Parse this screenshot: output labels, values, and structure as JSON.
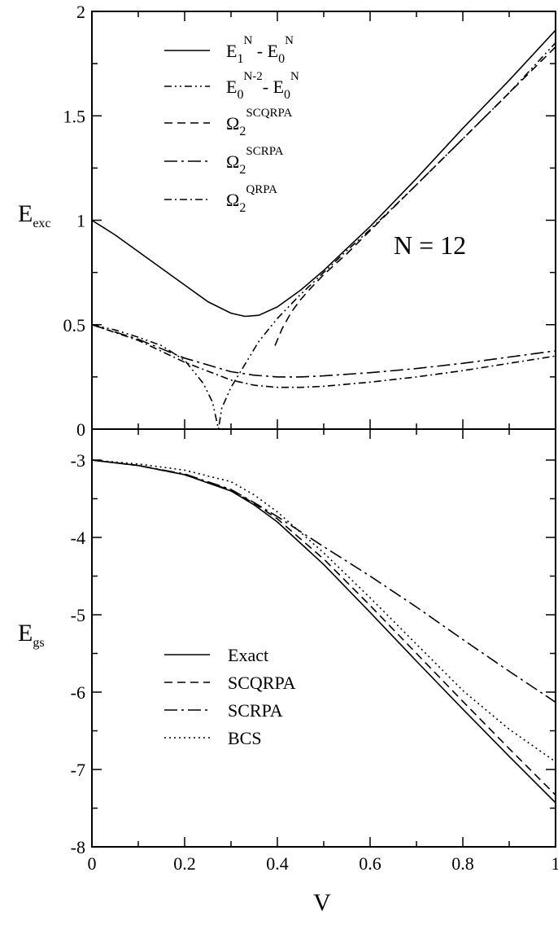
{
  "chart_data": [
    {
      "type": "line",
      "panel": "top",
      "ylabel": {
        "main": "E",
        "sub": "exc"
      },
      "xlim": [
        0,
        1
      ],
      "ylim": [
        0,
        2
      ],
      "yticks": [
        0,
        0.5,
        1,
        1.5,
        2
      ],
      "ytick_labels": [
        "0",
        "0.5",
        "1",
        "1.5",
        "2"
      ],
      "annotation": "N = 12",
      "legend_position": "top-left",
      "series": [
        {
          "key": "exact_excitation",
          "label": {
            "parts": [
              {
                "t": "E"
              },
              {
                "t": "1",
                "s": "sub"
              },
              {
                "t": "N",
                "s": "sup"
              },
              {
                "t": " - E"
              },
              {
                "t": "0",
                "s": "sub"
              },
              {
                "t": "N",
                "s": "sup"
              }
            ]
          },
          "dash": "solid",
          "x": [
            0,
            0.05,
            0.1,
            0.15,
            0.2,
            0.25,
            0.3,
            0.33,
            0.36,
            0.4,
            0.45,
            0.5,
            0.55,
            0.6,
            0.7,
            0.8,
            0.9,
            1.0
          ],
          "y": [
            1.0,
            0.93,
            0.85,
            0.77,
            0.69,
            0.61,
            0.555,
            0.54,
            0.545,
            0.585,
            0.665,
            0.76,
            0.865,
            0.97,
            1.2,
            1.44,
            1.67,
            1.91
          ]
        },
        {
          "key": "removal_energy",
          "label": {
            "parts": [
              {
                "t": "E"
              },
              {
                "t": "0",
                "s": "sub"
              },
              {
                "t": "N-2",
                "s": "sup"
              },
              {
                "t": "- E"
              },
              {
                "t": "0",
                "s": "sub"
              },
              {
                "t": "N",
                "s": "sup"
              }
            ]
          },
          "dash": "dash-dot-dot",
          "x": [
            0,
            0.05,
            0.1,
            0.15,
            0.2,
            0.24,
            0.26,
            0.273,
            0.28,
            0.3,
            0.33,
            0.36,
            0.4,
            0.45,
            0.5,
            0.55,
            0.6,
            0.7,
            0.8,
            0.9,
            1.0
          ],
          "y": [
            0.5,
            0.475,
            0.44,
            0.4,
            0.33,
            0.22,
            0.13,
            0.0,
            0.1,
            0.2,
            0.31,
            0.42,
            0.53,
            0.645,
            0.75,
            0.855,
            0.955,
            1.17,
            1.39,
            1.61,
            1.85
          ]
        },
        {
          "key": "omega2_scqrpa",
          "label": {
            "parts": [
              {
                "t": "Ω"
              },
              {
                "t": "2",
                "s": "sub"
              },
              {
                "t": "SCQRPA",
                "s": "sup"
              }
            ]
          },
          "dash": "dashed",
          "x": [
            0.395,
            0.41,
            0.43,
            0.45,
            0.47,
            0.5,
            0.55,
            0.6,
            0.65,
            0.7,
            0.8,
            0.9,
            1.0
          ],
          "y": [
            0.4,
            0.48,
            0.56,
            0.62,
            0.67,
            0.74,
            0.84,
            0.95,
            1.06,
            1.17,
            1.39,
            1.61,
            1.83
          ]
        },
        {
          "key": "omega2_scrpa",
          "label": {
            "parts": [
              {
                "t": "Ω"
              },
              {
                "t": "2",
                "s": "sub"
              },
              {
                "t": "SCRPA",
                "s": "sup"
              }
            ]
          },
          "dash": "long-dash-dot",
          "x": [
            0,
            0.1,
            0.2,
            0.3,
            0.35,
            0.4,
            0.45,
            0.5,
            0.6,
            0.7,
            0.8,
            0.9,
            1.0
          ],
          "y": [
            0.5,
            0.43,
            0.34,
            0.275,
            0.258,
            0.25,
            0.25,
            0.255,
            0.27,
            0.29,
            0.315,
            0.345,
            0.375
          ]
        },
        {
          "key": "omega2_qrpa",
          "label": {
            "parts": [
              {
                "t": "Ω"
              },
              {
                "t": "2",
                "s": "sub"
              },
              {
                "t": "QRPA",
                "s": "sup"
              }
            ]
          },
          "dash": "dash-dot",
          "x": [
            0,
            0.1,
            0.2,
            0.3,
            0.35,
            0.4,
            0.45,
            0.5,
            0.6,
            0.7,
            0.8,
            0.9,
            1.0
          ],
          "y": [
            0.5,
            0.425,
            0.32,
            0.235,
            0.21,
            0.2,
            0.2,
            0.205,
            0.225,
            0.25,
            0.28,
            0.315,
            0.35
          ]
        }
      ]
    },
    {
      "type": "line",
      "panel": "bottom",
      "xlabel": "V",
      "ylabel": {
        "main": "E",
        "sub": "gs"
      },
      "xlim": [
        0,
        1
      ],
      "ylim": [
        -8,
        -2.6
      ],
      "xticks": [
        0,
        0.2,
        0.4,
        0.6,
        0.8,
        1
      ],
      "xtick_labels": [
        "0",
        "0.2",
        "0.4",
        "0.6",
        "0.8",
        "1"
      ],
      "yticks": [
        -8,
        -7,
        -6,
        -5,
        -4,
        -3
      ],
      "ytick_labels": [
        "-8",
        "-7",
        "-6",
        "-5",
        "-4",
        "-3"
      ],
      "legend_position": "bottom-left",
      "series": [
        {
          "key": "exact",
          "label": "Exact",
          "dash": "solid",
          "x": [
            0,
            0.1,
            0.2,
            0.3,
            0.35,
            0.4,
            0.5,
            0.6,
            0.7,
            0.8,
            0.9,
            1.0
          ],
          "y": [
            -3.0,
            -3.07,
            -3.19,
            -3.4,
            -3.58,
            -3.8,
            -4.35,
            -4.97,
            -5.6,
            -6.22,
            -6.83,
            -7.43
          ]
        },
        {
          "key": "scqrpa",
          "label": "SCQRPA",
          "dash": "dashed",
          "x": [
            0,
            0.1,
            0.2,
            0.3,
            0.35,
            0.4,
            0.5,
            0.6,
            0.7,
            0.8,
            0.9,
            1.0
          ],
          "y": [
            -3.0,
            -3.07,
            -3.19,
            -3.39,
            -3.56,
            -3.76,
            -4.28,
            -4.88,
            -5.5,
            -6.12,
            -6.73,
            -7.33
          ]
        },
        {
          "key": "scrpa",
          "label": "SCRPA",
          "dash": "long-dash-dot",
          "x": [
            0,
            0.1,
            0.2,
            0.3,
            0.35,
            0.4,
            0.5,
            0.6,
            0.7,
            0.8,
            0.9,
            1.0
          ],
          "y": [
            -3.0,
            -3.07,
            -3.18,
            -3.38,
            -3.55,
            -3.73,
            -4.12,
            -4.5,
            -4.9,
            -5.32,
            -5.73,
            -6.13
          ]
        },
        {
          "key": "bcs",
          "label": "BCS",
          "dash": "dotted",
          "x": [
            0,
            0.1,
            0.2,
            0.3,
            0.35,
            0.4,
            0.5,
            0.6,
            0.7,
            0.8,
            0.9,
            1.0
          ],
          "y": [
            -3.0,
            -3.05,
            -3.13,
            -3.28,
            -3.45,
            -3.67,
            -4.2,
            -4.78,
            -5.38,
            -5.98,
            -6.48,
            -6.9
          ]
        }
      ]
    }
  ]
}
